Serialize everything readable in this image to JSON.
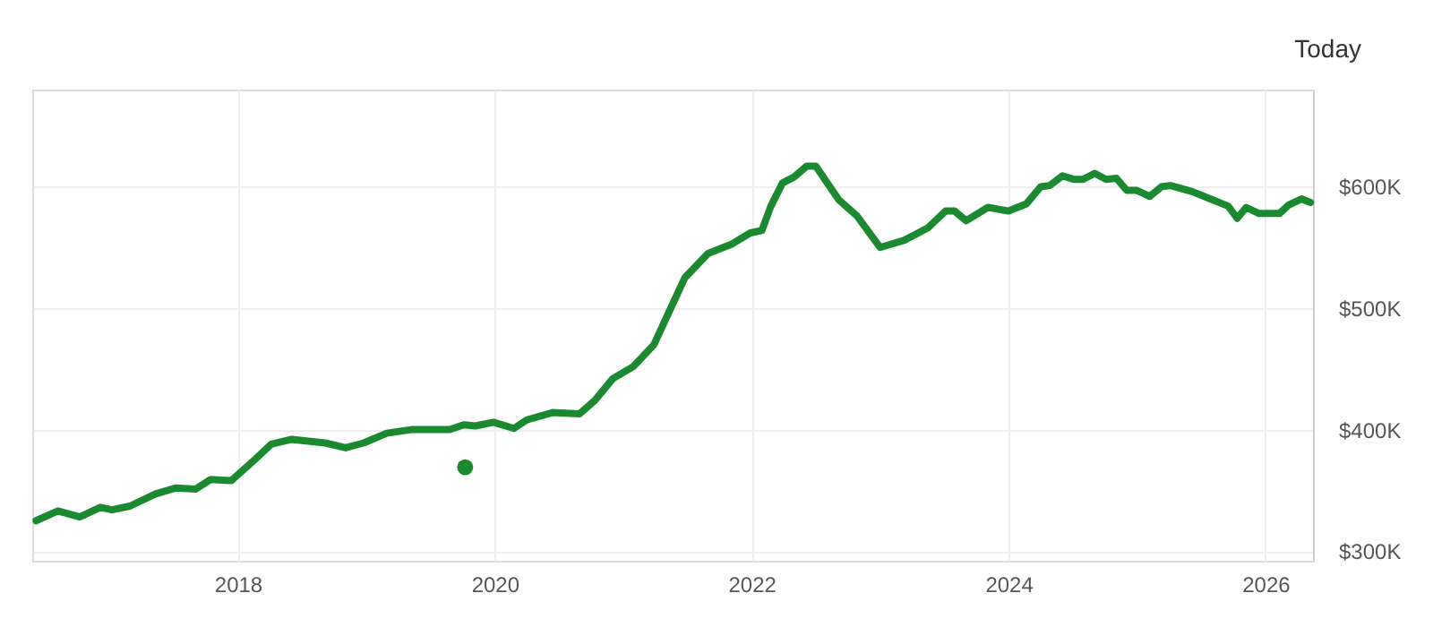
{
  "chart_data": {
    "type": "line",
    "xlim": [
      2016.4,
      2026.37
    ],
    "xticks": [
      2018,
      2020,
      2022,
      2024,
      2026
    ],
    "ylim": [
      292000,
      680000
    ],
    "yticks": [
      {
        "value": 300000,
        "label": "$300K"
      },
      {
        "value": 400000,
        "label": "$400K"
      },
      {
        "value": 500000,
        "label": "$500K"
      },
      {
        "value": 600000,
        "label": "$600K"
      }
    ],
    "grid": true,
    "marker": "none",
    "line_style": "solid",
    "annotations": [
      "Today"
    ],
    "series": [
      {
        "color": "#1a8a2e",
        "x": [
          2016.43,
          2016.6,
          2016.77,
          2016.93,
          2017.02,
          2017.16,
          2017.36,
          2017.52,
          2017.67,
          2017.79,
          2017.95,
          2018.14,
          2018.26,
          2018.42,
          2018.68,
          2018.84,
          2018.98,
          2019.16,
          2019.35,
          2019.65,
          2019.76,
          2019.85,
          2019.99,
          2020.15,
          2020.25,
          2020.45,
          2020.66,
          2020.78,
          2020.92,
          2021.08,
          2021.24,
          2021.34,
          2021.48,
          2021.66,
          2021.85,
          2021.99,
          2022.08,
          2022.15,
          2022.24,
          2022.33,
          2022.43,
          2022.5,
          2022.59,
          2022.68,
          2022.82,
          2023.0,
          2023.19,
          2023.37,
          2023.51,
          2023.58,
          2023.67,
          2023.84,
          2024.0,
          2024.14,
          2024.25,
          2024.32,
          2024.42,
          2024.51,
          2024.58,
          2024.67,
          2024.76,
          2024.84,
          2024.92,
          2025.0,
          2025.1,
          2025.19,
          2025.26,
          2025.43,
          2025.57,
          2025.71,
          2025.78,
          2025.85,
          2025.95,
          2026.11,
          2026.18,
          2026.28,
          2026.35
        ],
        "values": [
          325000,
          333000,
          328000,
          336000,
          334000,
          337000,
          347000,
          352000,
          351000,
          359000,
          358000,
          376000,
          388000,
          392000,
          389000,
          385000,
          389000,
          397000,
          400000,
          400000,
          404000,
          403000,
          406000,
          401000,
          408000,
          414000,
          413000,
          424000,
          442000,
          452000,
          470000,
          493000,
          525000,
          545000,
          553000,
          562000,
          564000,
          584000,
          603000,
          608000,
          617000,
          617000,
          603000,
          589000,
          576000,
          550000,
          556000,
          566000,
          580000,
          580000,
          572000,
          583000,
          580000,
          586000,
          600000,
          601000,
          609000,
          606000,
          606000,
          611000,
          606000,
          607000,
          597000,
          597000,
          592000,
          600000,
          601000,
          596000,
          590000,
          584000,
          574000,
          583000,
          578000,
          578000,
          585000,
          590000,
          587000
        ]
      },
      {
        "type": "scatter",
        "color": "#1a8a2e",
        "marker": "circle",
        "x": [
          2019.77
        ],
        "values": [
          369000
        ]
      }
    ]
  }
}
